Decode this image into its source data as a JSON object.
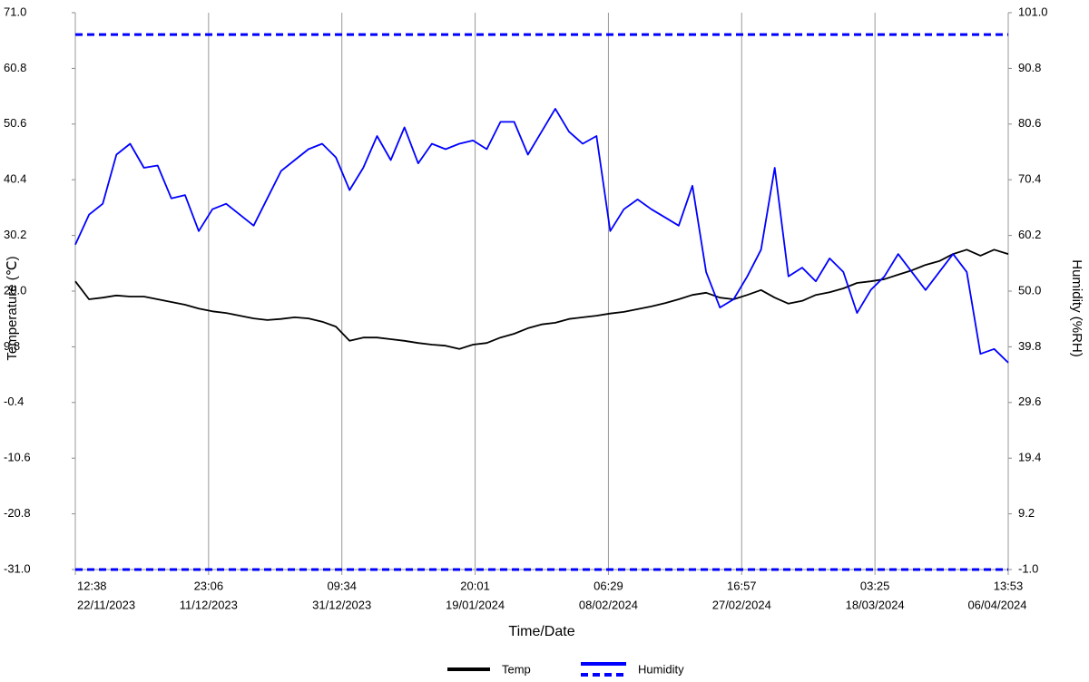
{
  "chart_data": {
    "type": "line",
    "xlabel": "Time/Date",
    "ylabel": "Temperature (℃)",
    "y2label": "Humidity (%RH)",
    "x": [
      "2023-11-22T12:38",
      "2023-11-24T12:38",
      "2023-11-26T12:38",
      "2023-11-28T12:38",
      "2023-11-30T12:38",
      "2023-12-02T12:38",
      "2023-12-04T12:38",
      "2023-12-06T12:38",
      "2023-12-08T12:38",
      "2023-12-10T12:38",
      "2023-12-12T12:38",
      "2023-12-14T12:38",
      "2023-12-16T12:38",
      "2023-12-18T12:38",
      "2023-12-20T12:38",
      "2023-12-22T12:38",
      "2023-12-24T12:38",
      "2023-12-26T12:38",
      "2023-12-28T12:38",
      "2023-12-30T12:38",
      "2024-01-01T12:38",
      "2024-01-03T12:38",
      "2024-01-05T12:38",
      "2024-01-07T12:38",
      "2024-01-09T12:38",
      "2024-01-11T12:38",
      "2024-01-13T12:38",
      "2024-01-15T12:38",
      "2024-01-17T12:38",
      "2024-01-19T12:38",
      "2024-01-21T12:38",
      "2024-01-23T12:38",
      "2024-01-25T12:38",
      "2024-01-27T12:38",
      "2024-01-29T12:38",
      "2024-01-31T12:38",
      "2024-02-02T12:38",
      "2024-02-04T12:38",
      "2024-02-06T12:38",
      "2024-02-08T12:38",
      "2024-02-10T12:38",
      "2024-02-12T12:38",
      "2024-02-14T12:38",
      "2024-02-16T12:38",
      "2024-02-18T12:38",
      "2024-02-20T12:38",
      "2024-02-22T12:38",
      "2024-02-24T12:38",
      "2024-02-26T12:38",
      "2024-02-28T12:38",
      "2024-03-01T12:38",
      "2024-03-03T12:38",
      "2024-03-05T12:38",
      "2024-03-07T12:38",
      "2024-03-09T12:38",
      "2024-03-11T12:38",
      "2024-03-13T12:38",
      "2024-03-15T12:38",
      "2024-03-17T12:38",
      "2024-03-19T12:38",
      "2024-03-21T12:38",
      "2024-03-23T12:38",
      "2024-03-25T12:38",
      "2024-03-27T12:38",
      "2024-03-29T12:38",
      "2024-03-31T12:38",
      "2024-04-02T12:38",
      "2024-04-04T12:38",
      "2024-04-06T13:53"
    ],
    "xlim": [
      "2023-11-22T12:38",
      "2024-04-06T13:53"
    ],
    "xticks": [
      {
        "value": "2023-11-22T12:38",
        "label": [
          "12:38",
          "22/11/2023"
        ]
      },
      {
        "value": "2023-12-11T23:06",
        "label": [
          "23:06",
          "11/12/2023"
        ]
      },
      {
        "value": "2023-12-31T09:34",
        "label": [
          "09:34",
          "31/12/2023"
        ]
      },
      {
        "value": "2024-01-19T20:01",
        "label": [
          "20:01",
          "19/01/2024"
        ]
      },
      {
        "value": "2024-02-08T06:29",
        "label": [
          "06:29",
          "08/02/2024"
        ]
      },
      {
        "value": "2024-02-27T16:57",
        "label": [
          "16:57",
          "27/02/2024"
        ]
      },
      {
        "value": "2024-03-18T03:25",
        "label": [
          "03:25",
          "18/03/2024"
        ]
      },
      {
        "value": "2024-04-06T13:53",
        "label": [
          "13:53",
          "06/04/2024"
        ]
      }
    ],
    "ylim": [
      -31,
      71
    ],
    "yticks": [
      {
        "value": -31,
        "label": "-31.0"
      },
      -20.8,
      -10.6,
      -0.4,
      9.8,
      {
        "value": 20,
        "label": "20.0"
      },
      30.2,
      40.4,
      50.6,
      60.8,
      {
        "value": 71,
        "label": "71.0"
      }
    ],
    "y2lim": [
      -1,
      101
    ],
    "y2ticks": [
      {
        "value": -1,
        "label": "-1.0"
      },
      9.2,
      19.4,
      29.6,
      39.8,
      {
        "value": 50,
        "label": "50.0"
      },
      60.2,
      70.4,
      80.6,
      90.8,
      {
        "value": 101,
        "label": "101.0"
      }
    ],
    "grid": "x",
    "legend": "bottom",
    "series": [
      {
        "name": "Temp",
        "color": "#000000",
        "values": [
          21.8,
          18.5,
          18.8,
          19.2,
          19,
          19,
          18.5,
          18,
          17.5,
          16.8,
          16.3,
          16,
          15.5,
          15,
          14.7,
          14.9,
          15.2,
          15,
          14.4,
          13.5,
          10.9,
          11.5,
          11.5,
          11.2,
          10.9,
          10.5,
          10.2,
          10,
          9.4,
          10.2,
          10.5,
          11.5,
          12.2,
          13.2,
          13.9,
          14.2,
          14.9,
          15.2,
          15.5,
          15.9,
          16.2,
          16.7,
          17.2,
          17.8,
          18.5,
          19.3,
          19.7,
          18.8,
          18.5,
          19.3,
          20.2,
          18.8,
          17.7,
          18.2,
          19.3,
          19.8,
          20.5,
          21.5,
          21.8,
          22.2,
          23,
          23.8,
          24.8,
          25.5,
          26.8,
          27.6,
          26.5,
          27.6,
          26.8
        ]
      },
      {
        "name": "Humidity",
        "color": "#0000ff",
        "axis": "y2",
        "limits": [
          97,
          -1
        ],
        "values": [
          58.5,
          64,
          66,
          75,
          77,
          72.6,
          73,
          67,
          67.6,
          61,
          65,
          66,
          64,
          62,
          67,
          72,
          74,
          76,
          77,
          74.5,
          68.5,
          72.6,
          78.4,
          74,
          80,
          73.4,
          77,
          76,
          77,
          77.6,
          76,
          81,
          81,
          75,
          79.2,
          83.4,
          79.2,
          77,
          78.4,
          61,
          65,
          66.8,
          65,
          63.5,
          62,
          69.3,
          53.5,
          47,
          48.5,
          52.7,
          57.6,
          72.6,
          52.7,
          54.3,
          51.8,
          56,
          53.5,
          46,
          50.2,
          52.7,
          56.8,
          53.5,
          50.2,
          53.5,
          56.8,
          53.5,
          38.5,
          39.4,
          36.9
        ]
      }
    ]
  }
}
